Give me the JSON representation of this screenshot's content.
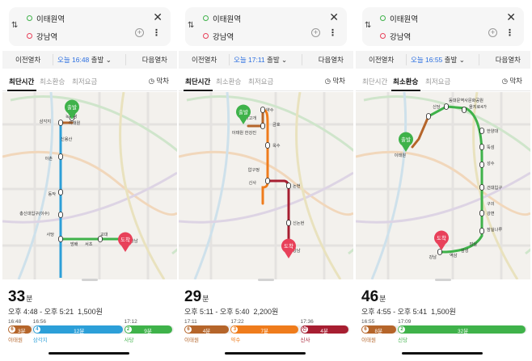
{
  "colors": {
    "line2": "#3fb24a",
    "line3": "#ef7c1c",
    "line4": "#2c9fd8",
    "line6": "#b5652a",
    "line7": "#747f00",
    "shinbundang": "#a71e31",
    "walk": "#b8b8b8",
    "accent": "#2c6fe0",
    "origin": "#3fb24a",
    "destination": "#e8415a"
  },
  "icons": {
    "swap": "swap-icon",
    "close": "close-icon",
    "add_stop": "plus-icon",
    "more": "more-vertical-icon",
    "clock": "clock-icon"
  },
  "panels": [
    {
      "origin": "이태원역",
      "destination": "강남역",
      "time_prev": "이전열차",
      "time_today": "오늘",
      "time_value": "16:48",
      "time_suffix": "출발",
      "time_next": "다음열차",
      "tabs": [
        "최단시간",
        "최소환승",
        "최저요금"
      ],
      "active_tab": 0,
      "last_car": "막차",
      "map": {
        "origin_pin": "출발",
        "dest_pin": "도착",
        "labels": [
          "녹사평",
          "삼각지",
          "이태원",
          "신용산",
          "이촌",
          "동작",
          "총신대입구(이수)",
          "사당",
          "방배",
          "서초",
          "교대",
          "강남"
        ]
      },
      "duration": "33",
      "duration_unit": "분",
      "time_range": "오후 4:48 - 오후 5:21",
      "fare": "1,500원",
      "segments": [
        {
          "line": "6",
          "mins": "3분",
          "start": "16:48",
          "station": "이태원",
          "color": "line6",
          "share": 0.15
        },
        {
          "line": "4",
          "mins": "12분",
          "start": "16:56",
          "station": "삼각지",
          "color": "line4",
          "share": 0.55
        },
        {
          "line": "2",
          "mins": "9분",
          "start": "17:12",
          "station": "사당",
          "color": "line2",
          "share": 0.3
        }
      ]
    },
    {
      "origin": "이태원역",
      "destination": "강남역",
      "time_prev": "이전열차",
      "time_today": "오늘",
      "time_value": "17:11",
      "time_suffix": "출발",
      "time_next": "다음열차",
      "tabs": [
        "최단시간",
        "최소환승",
        "최저요금"
      ],
      "active_tab": 0,
      "last_car": "막차",
      "map": {
        "origin_pin": "출발",
        "dest_pin": "도착",
        "labels": [
          "약수",
          "버티고개",
          "한강진",
          "이태원",
          "금호",
          "옥수",
          "압구정",
          "신사",
          "논현",
          "신논현",
          "강남"
        ]
      },
      "duration": "29",
      "duration_unit": "분",
      "time_range": "오후 5:11 - 오후 5:40",
      "fare": "2,200원",
      "segments": [
        {
          "line": "6",
          "mins": "4분",
          "start": "17:11",
          "station": "이태원",
          "color": "line6",
          "share": 0.28
        },
        {
          "line": "3",
          "mins": "7분",
          "start": "17:22",
          "station": "약수",
          "color": "line3",
          "share": 0.42
        },
        {
          "line": "신",
          "mins": "4분",
          "start": "17:36",
          "station": "신사",
          "color": "shinbundang",
          "share": 0.3
        }
      ]
    },
    {
      "origin": "이태원역",
      "destination": "강남역",
      "time_prev": "이전열차",
      "time_today": "오늘",
      "time_value": "16:55",
      "time_suffix": "출발",
      "time_next": "다음열차",
      "tabs": [
        "최단시간",
        "최소환승",
        "최저요금"
      ],
      "active_tab": 1,
      "last_car": "막차",
      "map": {
        "origin_pin": "출발",
        "dest_pin": "도착",
        "labels": [
          "신당",
          "동대문역사문화공원",
          "을지로4가",
          "한양대",
          "뚝섬",
          "성수",
          "건대입구",
          "구의",
          "강변",
          "잠실나루",
          "잠실",
          "삼성",
          "역삼",
          "강남",
          "이태원"
        ]
      },
      "duration": "46",
      "duration_unit": "분",
      "time_range": "오후 4:55 - 오후 5:41",
      "fare": "1,500원",
      "segments": [
        {
          "line": "6",
          "mins": "8분",
          "start": "16:55",
          "station": "이태원",
          "color": "line6",
          "share": 0.22
        },
        {
          "line": "2",
          "mins": "32분",
          "start": "17:09",
          "station": "신당",
          "color": "line2",
          "share": 0.78
        }
      ]
    }
  ]
}
